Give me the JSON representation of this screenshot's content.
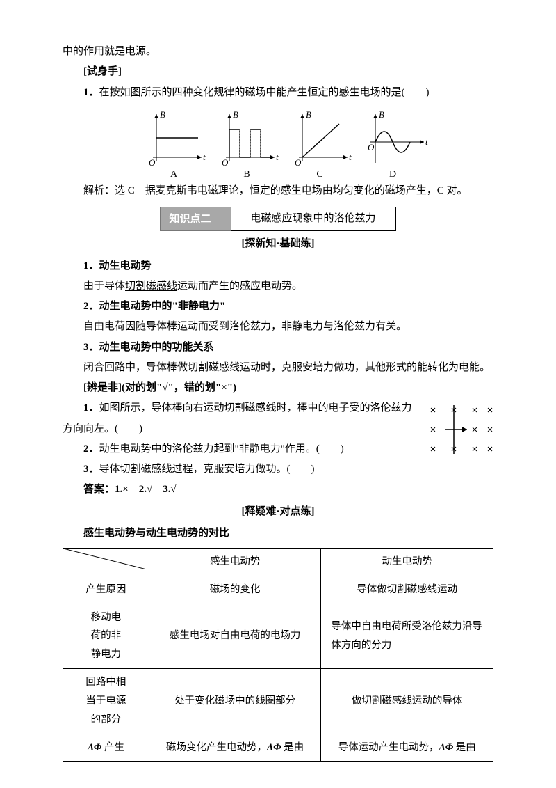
{
  "top_line": "中的作用就是电源。",
  "try_heading": "[试身手]",
  "q1_prefix": "1．",
  "q1_text": "在按如图所示的四种变化规律的磁场中能产生恒定的感生电场的是(　　)",
  "graphs": {
    "labels": [
      "A",
      "B",
      "C",
      "D"
    ],
    "axis_y": "B",
    "axis_x": "t",
    "axis_color": "#000",
    "curve_color": "#000",
    "dash_color": "#777",
    "label_fontsize": 14
  },
  "q1_ans_prefix": "解析：选 C　",
  "q1_ans_text": "据麦克斯韦电磁理论，恒定的感生电场由均匀变化的磁场产生，C 对。",
  "knowledge_left": "知识点二",
  "knowledge_right": "电磁感应现象中的洛伦兹力",
  "explore_heading": "[探新知·基础练]",
  "sec1_head": "1．动生电动势",
  "sec1_body_a": "由于导体",
  "sec1_body_u": "切割磁感线",
  "sec1_body_b": "运动而产生的感应电动势。",
  "sec2_head": "2．动生电动势中的\"非静电力\"",
  "sec2_body_a": "自由电荷因随导体棒运动而受到",
  "sec2_body_u1": "洛伦兹力",
  "sec2_body_b": "，非静电力与",
  "sec2_body_u2": "洛伦兹力",
  "sec2_body_c": "有关。",
  "sec3_head": "3．动生电动势中的功能关系",
  "sec3_body_a": "闭合回路中，导体棒做切割磁感线运动时，克服",
  "sec3_body_u1": "安培",
  "sec3_body_b": "力做功，其他形式的能转化为",
  "sec3_body_u2": "电能",
  "sec3_body_c": "。",
  "tf_heading": "[辨是非](对的划\"√\"，错的划\"×\")",
  "tf1_prefix": "1．",
  "tf1_text": "如图所示，导体棒向右运动切割磁感线时，棒中的电子受的洛伦兹力方向向左。(　　)",
  "tf2_prefix": "2．",
  "tf2_text": "动生电动势中的洛伦兹力起到\"非静电力\"作用。(　　)",
  "tf3_prefix": "3．",
  "tf3_text": "导体切割磁感线过程，克服安培力做功。(　　)",
  "tf_ans": "答案：1.×　2.√　3.√",
  "explain_heading": "[释疑难·对点练]",
  "compare_title": "感生电动势与动生电动势的对比",
  "diagram": {
    "cross_color": "#000",
    "rod_color": "#000",
    "arrow_color": "#000"
  },
  "table": {
    "col1_header": "",
    "headers": [
      "感生电动势",
      "动生电动势"
    ],
    "rows": [
      {
        "label": "产生原因",
        "c1": "磁场的变化",
        "c2": "导体做切割磁感线运动"
      },
      {
        "label": "移动电\n荷的非\n静电力",
        "c1": "感生电场对自由电荷的电场力",
        "c2": "导体中自由电荷所受洛伦兹力沿导体方向的分力"
      },
      {
        "label": "回路中相\n当于电源\n的部分",
        "c1": "处于变化磁场中的线圈部分",
        "c2": "做切割磁感线运动的导体"
      },
      {
        "label": "ΔΦ 产生",
        "c1": "磁场变化产生电动势，ΔΦ 是由",
        "c2": "导体运动产生电动势，ΔΦ 是由"
      }
    ]
  }
}
